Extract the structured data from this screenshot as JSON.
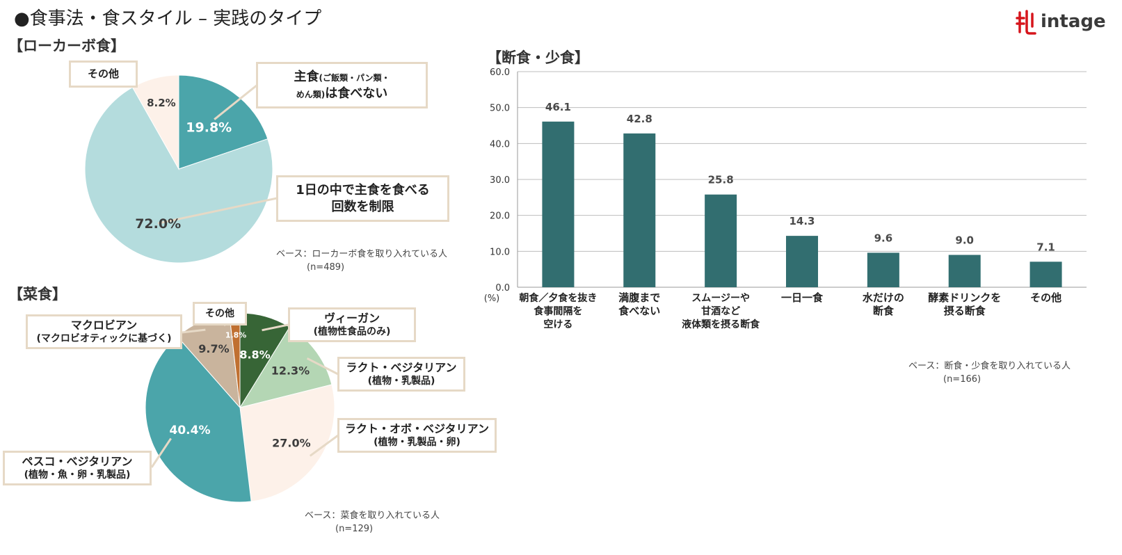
{
  "page": {
    "title": "●食事法・食スタイル – 実践のタイプ",
    "logo_text": "intage"
  },
  "colors": {
    "teal_dark": "#4ba5aa",
    "teal_light": "#b4dcdd",
    "cream": "#fdf1e9",
    "bar": "#326e70",
    "green_dark": "#376536",
    "green_light": "#b4d6b4",
    "tan": "#c9b49d",
    "orange": "#c07031",
    "callout_border": "#e6d9c6"
  },
  "lowcarb": {
    "section_label": "【ローカーボ食】",
    "base_note": "ベース：ローカーボ食を取り入れている人",
    "base_n": "(n=489)",
    "callouts": {
      "staple_main": "主食",
      "staple_paren": "(ご飯類・パン類・",
      "staple_paren2": "めん類)",
      "staple_tail": "は食べない",
      "limit_line1": "1日の中で主食を食べる",
      "limit_line2": "回数を制限",
      "other": "その他"
    }
  },
  "vegetarian": {
    "section_label": "【菜食】",
    "base_note": "ベース：菜食を取り入れている人",
    "base_n": "(n=129)",
    "callouts": {
      "vegan_1": "ヴィーガン",
      "vegan_2": "(植物性食品のみ)",
      "lacto_1": "ラクト・ベジタリアン",
      "lacto_2": "(植物・乳製品)",
      "lactoovo_1": "ラクト・オボ・ベジタリアン",
      "lactoovo_2": "(植物・乳製品・卵)",
      "pesco_1": "ペスコ・ベジタリアン",
      "pesco_2": "(植物・魚・卵・乳製品)",
      "macro_1": "マクロビアン",
      "macro_2": "(マクロビオティックに基づく)",
      "other": "その他"
    }
  },
  "fasting": {
    "section_label": "【断食・少食】",
    "base_note": "ベース：断食・少食を取り入れている人",
    "base_n": "(n=166)",
    "unit": "(%)"
  },
  "chart_data": [
    {
      "type": "pie",
      "title": "【ローカーボ食】",
      "categories": [
        "主食(ご飯類・パン類・めん類)は食べない",
        "1日の中で主食を食べる回数を制限",
        "その他"
      ],
      "values": [
        19.8,
        72.0,
        8.2
      ],
      "labels": [
        "19.8%",
        "72.0%",
        "8.2%"
      ],
      "colors": [
        "#4ba5aa",
        "#b4dcdd",
        "#fdf1e9"
      ]
    },
    {
      "type": "pie",
      "title": "【菜食】",
      "categories": [
        "ヴィーガン(植物性食品のみ)",
        "ラクト・ベジタリアン(植物・乳製品)",
        "ラクト・オボ・ベジタリアン(植物・乳製品・卵)",
        "ペスコ・ベジタリアン(植物・魚・卵・乳製品)",
        "マクロビアン(マクロビオティックに基づく)",
        "その他"
      ],
      "values": [
        8.8,
        12.3,
        27.0,
        40.4,
        9.7,
        1.8
      ],
      "labels": [
        "8.8%",
        "12.3%",
        "27.0%",
        "40.4%",
        "9.7%",
        "1.8%"
      ],
      "colors": [
        "#376536",
        "#b4d6b4",
        "#fdf1e9",
        "#4ba5aa",
        "#c9b49d",
        "#c07031"
      ]
    },
    {
      "type": "bar",
      "title": "【断食・少食】",
      "categories": [
        [
          "朝食／夕食を抜き",
          "食事間隔を",
          "空ける"
        ],
        [
          "満腹まで",
          "食べない"
        ],
        [
          "スムージーや",
          "甘酒など",
          "液体類を摂る断食"
        ],
        [
          "一日一食"
        ],
        [
          "水だけの",
          "断食"
        ],
        [
          "酵素ドリンクを",
          "摂る断食"
        ],
        [
          "その他"
        ]
      ],
      "values": [
        46.1,
        42.8,
        25.8,
        14.3,
        9.6,
        9.0,
        7.1
      ],
      "value_labels": [
        "46.1",
        "42.8",
        "25.8",
        "14.3",
        "9.6",
        "9.0",
        "7.1"
      ],
      "ylim": [
        0,
        60
      ],
      "yticks": [
        "0.0",
        "10.0",
        "20.0",
        "30.0",
        "40.0",
        "50.0",
        "60.0"
      ],
      "ylabel": "(%)",
      "grid": true,
      "color": "#326e70"
    }
  ]
}
